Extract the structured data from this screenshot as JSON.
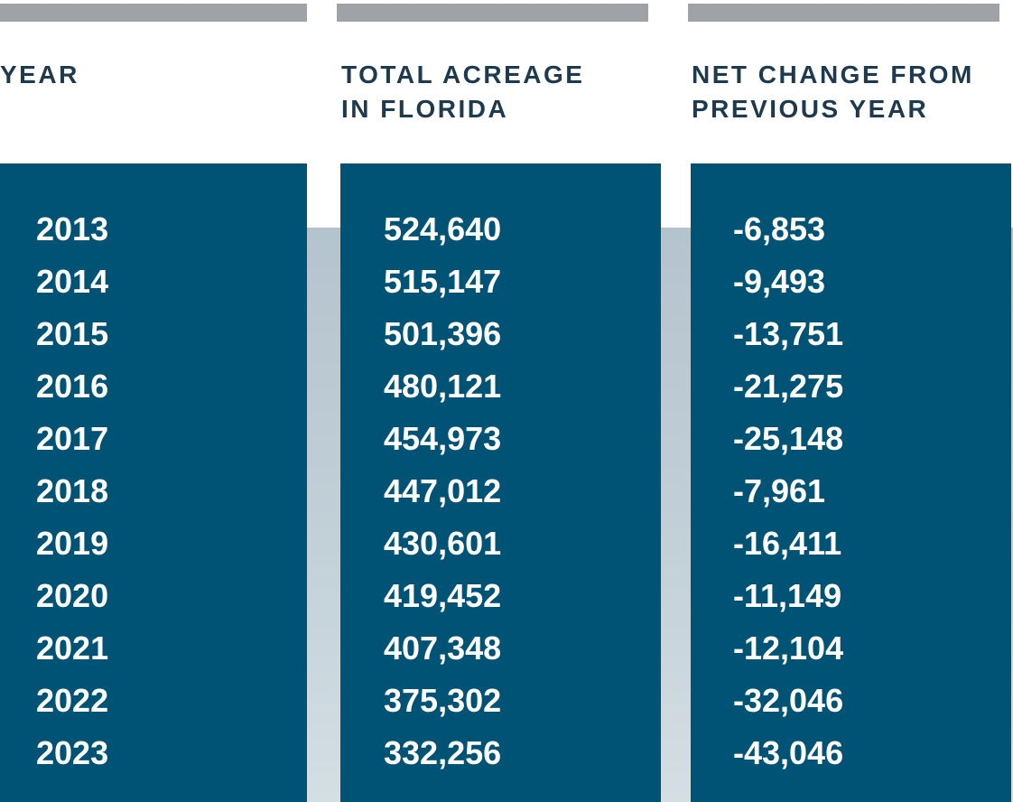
{
  "chart_data": {
    "type": "table",
    "columns": [
      "YEAR",
      "TOTAL ACREAGE IN FLORIDA",
      "NET CHANGE FROM PREVIOUS YEAR"
    ],
    "header_lines": [
      "YEAR",
      "TOTAL ACREAGE\nIN FLORIDA",
      "NET CHANGE FROM\nPREVIOUS YEAR"
    ],
    "rows": [
      [
        "2013",
        "524,640",
        "-6,853"
      ],
      [
        "2014",
        "515,147",
        "-9,493"
      ],
      [
        "2015",
        "501,396",
        "-13,751"
      ],
      [
        "2016",
        "480,121",
        "-21,275"
      ],
      [
        "2017",
        "454,973",
        "-25,148"
      ],
      [
        "2018",
        "447,012",
        "-7,961"
      ],
      [
        "2019",
        "430,601",
        "-16,411"
      ],
      [
        "2020",
        "419,452",
        "-11,149"
      ],
      [
        "2021",
        "407,348",
        "-12,104"
      ],
      [
        "2022",
        "375,302",
        "-32,046"
      ],
      [
        "2023",
        "332,256",
        "-43,046"
      ]
    ]
  },
  "colors": {
    "header_text": "#1e3a4f",
    "column_fill": "#005375",
    "value_text": "#ffffff",
    "top_bar": "#9fa3a7",
    "background_gradient_top": "#b4c3cd",
    "background_gradient_bottom": "#d4dfe4"
  }
}
